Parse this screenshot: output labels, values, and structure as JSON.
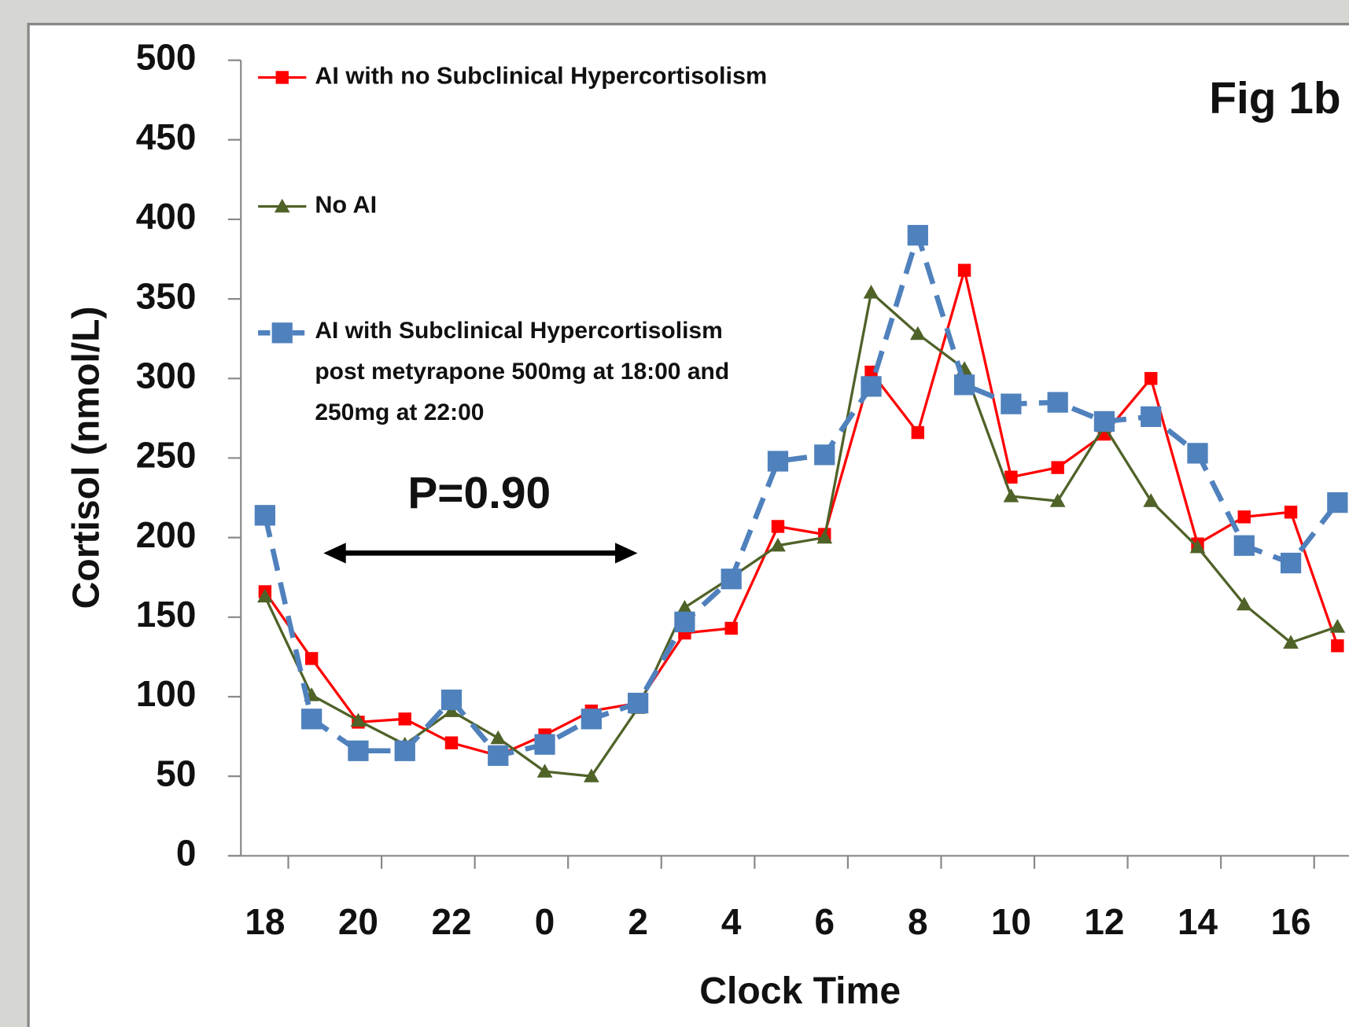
{
  "chart_data": {
    "type": "line",
    "annotations": [
      "Fig 1b",
      "P=0.90"
    ],
    "x_label": "Clock Time",
    "y_label": "Cortisol (nmol/L)",
    "categories": [
      "18",
      null,
      "20",
      null,
      "22",
      null,
      "0",
      null,
      "2",
      null,
      "4",
      null,
      "6",
      null,
      "8",
      null,
      "10",
      null,
      "12",
      null,
      "14",
      null,
      "16",
      null
    ],
    "series": [
      {
        "name": "AI with no Subclinical Hypercortisolism",
        "color": "#ff0000",
        "marker": "square",
        "values": [
          166,
          124,
          84,
          86,
          71,
          63,
          76,
          91,
          96,
          140,
          143,
          207,
          202,
          304,
          266,
          368,
          238,
          244,
          265,
          300,
          196,
          213,
          216,
          132
        ]
      },
      {
        "name": "No AI",
        "color": "#4f6228",
        "marker": "triangle",
        "values": [
          163,
          101,
          85,
          70,
          91,
          74,
          53,
          50,
          93,
          156,
          175,
          195,
          200,
          354,
          328,
          306,
          226,
          223,
          270,
          223,
          194,
          158,
          134,
          144
        ]
      },
      {
        "name": "AI with Subclinical Hypercortisolism\npost metyrapone 500mg at 18:00 and\n250mg at 22:00",
        "color": "#4f81bd",
        "marker": "big-square",
        "dashed": true,
        "values": [
          214,
          86,
          66,
          66,
          98,
          63,
          70,
          86,
          96,
          147,
          174,
          248,
          252,
          295,
          390,
          296,
          284,
          285,
          273,
          276,
          253,
          195,
          184,
          222
        ]
      }
    ],
    "ylim": [
      0,
      500
    ],
    "yticks": [
      0,
      50,
      100,
      150,
      200,
      250,
      300,
      350,
      400,
      450,
      500
    ]
  }
}
